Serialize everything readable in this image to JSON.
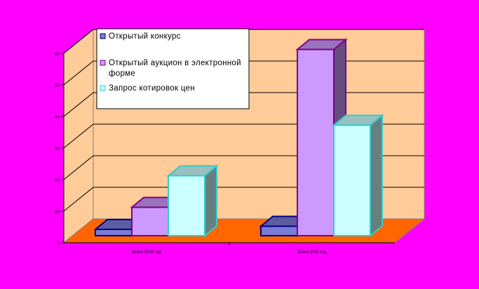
{
  "chart_data": {
    "type": "bar",
    "title": "",
    "xlabel": "",
    "ylabel": "",
    "ylim": [
      0,
      60
    ],
    "y_ticks": [
      0,
      10,
      20,
      30,
      40,
      50,
      60
    ],
    "categories": [
      "Всего 2010 год",
      "Всего 2011 год"
    ],
    "series": [
      {
        "name": "Открытый конкурс",
        "values": [
          2,
          3
        ],
        "color": "#7b7bd8"
      },
      {
        "name": "Открытый аукцион в электронной форме",
        "values": [
          9,
          59
        ],
        "color": "#cc99ff"
      },
      {
        "name": "Запрос котировок цен",
        "values": [
          19,
          35
        ],
        "color": "#ccffff"
      }
    ],
    "legend_position": "top-left",
    "grid": true,
    "style": {
      "page_background": "#ff00ff",
      "wall_color": "#ffcc99",
      "floor_color": "#ff6600",
      "edge_colors": [
        "#000080",
        "#800080",
        "#33cccc"
      ]
    }
  }
}
